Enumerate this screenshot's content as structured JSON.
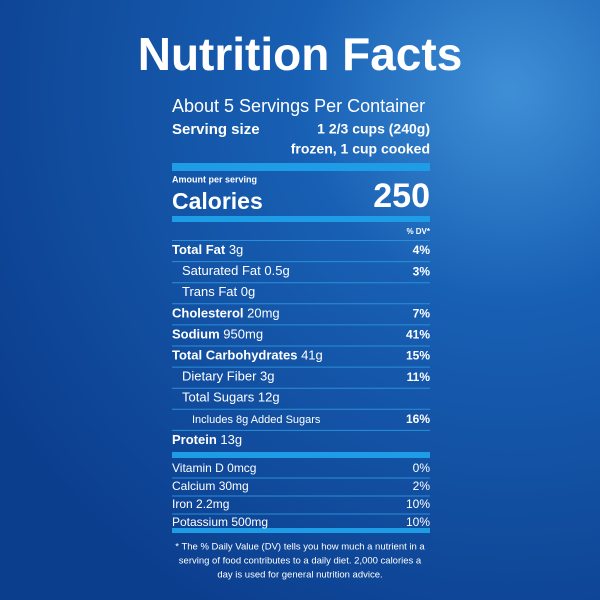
{
  "title": "Nutrition Facts",
  "servings_per_container": "About 5 Servings Per Container",
  "serving_size": {
    "label": "Serving size",
    "amount": "1 2/3 cups (240g)",
    "note": "frozen, 1 cup cooked"
  },
  "amount_per_serving": "Amount per serving",
  "calories": {
    "label": "Calories",
    "value": "250"
  },
  "dv_header": "% DV*",
  "nutrients": [
    {
      "name": "Total Fat",
      "amount": "3g",
      "dv": "4%"
    },
    {
      "name": "Saturated Fat",
      "amount": "0.5g",
      "dv": "3%"
    },
    {
      "name": "Trans Fat",
      "amount": "0g"
    },
    {
      "name": "Cholesterol",
      "amount": "20mg",
      "dv": "7%"
    },
    {
      "name": "Sodium",
      "amount": "950mg",
      "dv": "41%"
    },
    {
      "name": "Total Carbohydrates",
      "amount": "41g",
      "dv": "15%"
    },
    {
      "name": "Dietary Fiber",
      "amount": "3g",
      "dv": "11%"
    },
    {
      "name": "Total Sugars",
      "amount": "12g"
    },
    {
      "name": "Includes 8g Added Sugars",
      "dv": "16%"
    },
    {
      "name": "Protein",
      "amount": "13g"
    }
  ],
  "vitamins": [
    {
      "name": "Vitamin D",
      "amount": "0mcg",
      "dv": "0%"
    },
    {
      "name": "Calcium",
      "amount": "30mg",
      "dv": "2%"
    },
    {
      "name": "Iron",
      "amount": "2.2mg",
      "dv": "10%"
    },
    {
      "name": "Potassium",
      "amount": "500mg",
      "dv": "10%"
    }
  ],
  "footnote": [
    "* The % Daily Value (DV) tells you how much a nutrient in a",
    "serving of food contributes to a daily diet. 2,000 calories a",
    "day is used for general nutrition advice."
  ]
}
